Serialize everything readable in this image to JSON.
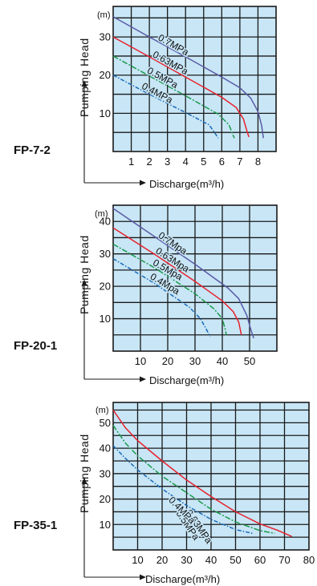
{
  "chart_data": [
    {
      "type": "line",
      "title": "FP-7-2",
      "xlabel": "Discharge(m³/h)",
      "ylabel": "Pumping Head",
      "yunit": "(m)",
      "xlim": [
        0,
        9
      ],
      "ylim": [
        0,
        38
      ],
      "x_grid": [
        1,
        2,
        3,
        4,
        5,
        6,
        7,
        8
      ],
      "y_grid": [
        5,
        10,
        15,
        20,
        25,
        30,
        35
      ],
      "x_ticks": [
        {
          "v": 1,
          "t": "1"
        },
        {
          "v": 2,
          "t": "2"
        },
        {
          "v": 3,
          "t": "3"
        },
        {
          "v": 4,
          "t": "4"
        },
        {
          "v": 5,
          "t": "5"
        },
        {
          "v": 6,
          "t": "6"
        },
        {
          "v": 7,
          "t": "7"
        },
        {
          "v": 8,
          "t": "8"
        }
      ],
      "y_ticks": [
        {
          "v": 10,
          "t": "10"
        },
        {
          "v": 20,
          "t": "20"
        },
        {
          "v": 30,
          "t": "30"
        }
      ],
      "grid": true,
      "series": [
        {
          "name": "0.7MPa",
          "color": "#5a5aa6",
          "dash": "",
          "points": [
            [
              0,
              35.3
            ],
            [
              2,
              30
            ],
            [
              4,
              24.8
            ],
            [
              6,
              19.5
            ],
            [
              7,
              16.7
            ],
            [
              7.6,
              14
            ],
            [
              8,
              10.5
            ],
            [
              8.2,
              6.8
            ],
            [
              8.3,
              3.5
            ]
          ],
          "label_x": 2.4
        },
        {
          "name": "0.63MPa",
          "color": "#e8212c",
          "dash": "",
          "points": [
            [
              0,
              30
            ],
            [
              2,
              24.8
            ],
            [
              4,
              19.5
            ],
            [
              6,
              14.2
            ],
            [
              6.8,
              11.5
            ],
            [
              7.2,
              8.5
            ],
            [
              7.4,
              5.2
            ],
            [
              7.5,
              3.8
            ]
          ],
          "label_x": 2.1
        },
        {
          "name": "0.5MPa",
          "color": "#1a9a4a",
          "dash": "7 2 2 2",
          "points": [
            [
              0,
              25
            ],
            [
              2,
              19.8
            ],
            [
              4,
              14.6
            ],
            [
              5.8,
              9.8
            ],
            [
              6.4,
              7
            ],
            [
              6.6,
              4.5
            ],
            [
              6.7,
              3.5
            ]
          ],
          "label_x": 1.8
        },
        {
          "name": "0.4MPa",
          "color": "#1a6ab8",
          "dash": "5 2 1.5 2",
          "points": [
            [
              0,
              20
            ],
            [
              2,
              15
            ],
            [
              4,
              10.2
            ],
            [
              5.3,
              7
            ],
            [
              5.6,
              5
            ],
            [
              5.8,
              3.5
            ]
          ],
          "label_x": 1.5
        }
      ]
    },
    {
      "type": "line",
      "title": "FP-20-1",
      "xlabel": "Discharge(m³/h)",
      "ylabel": "Pumping Head",
      "yunit": "(m)",
      "xlim": [
        0,
        60
      ],
      "ylim": [
        0,
        45
      ],
      "x_grid": [
        10,
        20,
        30,
        40,
        50
      ],
      "y_grid": [
        5,
        10,
        15,
        20,
        25,
        30,
        35,
        40
      ],
      "x_ticks": [
        {
          "v": 10,
          "t": "10"
        },
        {
          "v": 20,
          "t": "20"
        },
        {
          "v": 30,
          "t": "30"
        },
        {
          "v": 40,
          "t": "40"
        },
        {
          "v": 50,
          "t": "50"
        }
      ],
      "y_ticks": [
        {
          "v": 10,
          "t": "10"
        },
        {
          "v": 20,
          "t": "20"
        },
        {
          "v": 30,
          "t": "30"
        },
        {
          "v": 40,
          "t": "40"
        }
      ],
      "grid": true,
      "series": [
        {
          "name": "0.7Mpa",
          "color": "#5a5aa6",
          "dash": "",
          "points": [
            [
              0,
              44
            ],
            [
              15,
              35.4
            ],
            [
              30,
              26.8
            ],
            [
              42,
              19.5
            ],
            [
              46,
              16.2
            ],
            [
              49,
              11
            ],
            [
              50.5,
              6.5
            ],
            [
              51.5,
              4
            ]
          ],
          "label_x": 16
        },
        {
          "name": "0.63Mpa",
          "color": "#e8212c",
          "dash": "",
          "points": [
            [
              0,
              38
            ],
            [
              15,
              30
            ],
            [
              30,
              21.5
            ],
            [
              40,
              15.5
            ],
            [
              44,
              12.2
            ],
            [
              46,
              9
            ],
            [
              47,
              5
            ]
          ],
          "label_x": 15
        },
        {
          "name": "0.5Mpa",
          "color": "#1a9a4a",
          "dash": "7 2 2 2",
          "points": [
            [
              0,
              33
            ],
            [
              15,
              25.8
            ],
            [
              30,
              17.7
            ],
            [
              37,
              13
            ],
            [
              40,
              10
            ],
            [
              41,
              7
            ],
            [
              41.5,
              5
            ]
          ],
          "label_x": 14
        },
        {
          "name": "0.4Mpa",
          "color": "#1a6ab8",
          "dash": "5 2 1.5 2",
          "points": [
            [
              0,
              28.5
            ],
            [
              15,
              21
            ],
            [
              28,
              13.5
            ],
            [
              32,
              10
            ],
            [
              34,
              7
            ],
            [
              35.5,
              4.5
            ]
          ],
          "label_x": 13
        }
      ]
    },
    {
      "type": "line",
      "title": "FP-35-1",
      "xlabel": "Discharge(m³/h)",
      "ylabel": "Pumping Head",
      "yunit": "(m)",
      "xlim": [
        0,
        80
      ],
      "ylim": [
        0,
        58
      ],
      "x_grid": [
        10,
        20,
        30,
        40,
        50,
        60,
        70
      ],
      "y_grid": [
        5,
        10,
        15,
        20,
        25,
        30,
        35,
        40,
        45,
        50,
        55
      ],
      "x_ticks": [
        {
          "v": 10,
          "t": "10"
        },
        {
          "v": 20,
          "t": "20"
        },
        {
          "v": 30,
          "t": "30"
        },
        {
          "v": 40,
          "t": "40"
        },
        {
          "v": 50,
          "t": "50"
        },
        {
          "v": 60,
          "t": "60"
        },
        {
          "v": 70,
          "t": "70"
        },
        {
          "v": 80,
          "t": "80"
        }
      ],
      "y_ticks": [
        {
          "v": 10,
          "t": "10"
        },
        {
          "v": 20,
          "t": "20"
        },
        {
          "v": 30,
          "t": "30"
        },
        {
          "v": 40,
          "t": "40"
        },
        {
          "v": 50,
          "t": "50"
        }
      ],
      "grid": true,
      "series": [
        {
          "name": "0.63MPa",
          "color": "#e8212c",
          "dash": "",
          "points": [
            [
              0,
              55
            ],
            [
              5,
              48
            ],
            [
              10,
              43
            ],
            [
              20,
              35
            ],
            [
              30,
              27.5
            ],
            [
              40,
              21
            ],
            [
              50,
              15
            ],
            [
              60,
              10.2
            ],
            [
              67,
              7.8
            ],
            [
              73,
              5.3
            ]
          ],
          "label_x": 29
        },
        {
          "name": "0.5MPa",
          "color": "#1a9a4a",
          "dash": "7 2 2 2",
          "points": [
            [
              0,
              49
            ],
            [
              5,
              42
            ],
            [
              10,
              37
            ],
            [
              20,
              29
            ],
            [
              30,
              22.5
            ],
            [
              40,
              16
            ],
            [
              50,
              11
            ],
            [
              60,
              7.6
            ],
            [
              66,
              6.5
            ]
          ],
          "label_x": 25
        },
        {
          "name": "0.4MPa",
          "color": "#1a6ab8",
          "dash": "5 2 1.5 2",
          "points": [
            [
              0,
              41
            ],
            [
              5,
              36
            ],
            [
              10,
              31.5
            ],
            [
              20,
              24
            ],
            [
              30,
              17.5
            ],
            [
              40,
              12
            ],
            [
              50,
              8
            ],
            [
              57,
              6.5
            ]
          ],
          "label_x": 22
        }
      ]
    }
  ]
}
